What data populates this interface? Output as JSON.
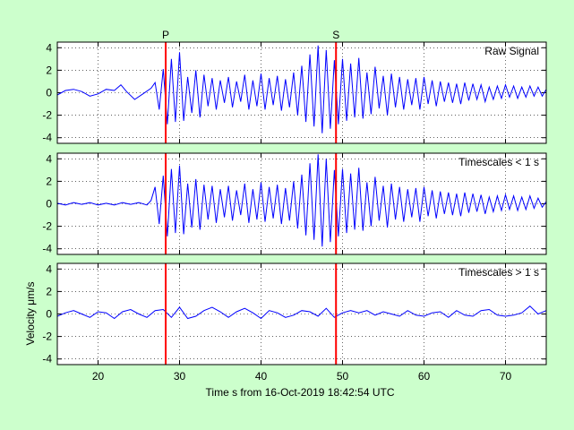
{
  "figure": {
    "background": "#ccffcc",
    "trace_color": "#0000ff",
    "marker_color": "#ff0000",
    "xlabel": "Time s from 16-Oct-2019 18:42:54 UTC",
    "ylabel": "Velocity μm/s"
  },
  "chart_data": [
    {
      "type": "line",
      "title": "Raw Signal",
      "xlim": [
        15,
        75
      ],
      "ylim": [
        -4.5,
        4.5
      ],
      "xticks": [
        20,
        30,
        40,
        50,
        60,
        70
      ],
      "yticks": [
        -4,
        -2,
        0,
        2,
        4
      ],
      "grid": true,
      "show_xtick_labels": false,
      "markers": [
        {
          "label": "P",
          "x": 28.3
        },
        {
          "label": "S",
          "x": 49.2
        }
      ],
      "series": [
        {
          "color": "#0000ff",
          "x": [
            15,
            16,
            17,
            18,
            19,
            20,
            21,
            22,
            22.8,
            23.5,
            24.5,
            25.5,
            26.5,
            27,
            27.5,
            28,
            28.5,
            29,
            29.5,
            30,
            30.5,
            31,
            31.5,
            32,
            32.5,
            33,
            33.5,
            34,
            34.5,
            35,
            35.5,
            36,
            36.5,
            37,
            37.5,
            38,
            38.5,
            39,
            39.5,
            40,
            40.5,
            41,
            41.5,
            42,
            42.5,
            43,
            43.5,
            44,
            44.5,
            45,
            45.5,
            46,
            46.5,
            47,
            47.5,
            48,
            48.5,
            49,
            49.5,
            50,
            50.5,
            51,
            51.5,
            52,
            52.5,
            53,
            53.5,
            54,
            54.5,
            55,
            55.5,
            56,
            56.5,
            57,
            57.5,
            58,
            58.5,
            59,
            59.5,
            60,
            60.5,
            61,
            61.5,
            62,
            62.5,
            63,
            63.5,
            64,
            64.5,
            65,
            65.5,
            66,
            66.5,
            67,
            67.5,
            68,
            68.5,
            69,
            69.5,
            70,
            70.5,
            71,
            71.5,
            72,
            72.5,
            73,
            73.5,
            74,
            74.5,
            75
          ],
          "y": [
            -0.2,
            0.2,
            0.3,
            0.1,
            -0.3,
            -0.1,
            0.3,
            0.2,
            0.7,
            0.1,
            -0.6,
            -0.1,
            0.4,
            0.9,
            -1.5,
            2.1,
            -2.8,
            3.0,
            -2.6,
            3.6,
            -2.5,
            1.4,
            -1.8,
            2.0,
            -2.2,
            1.6,
            -1.2,
            1.3,
            -1.5,
            1.1,
            -0.9,
            1.4,
            -1.3,
            1.0,
            -0.8,
            1.6,
            -1.5,
            1.1,
            -1.2,
            1.7,
            -1.5,
            1.3,
            -1.1,
            1.5,
            -1.6,
            1.2,
            -1.3,
            1.8,
            -2.0,
            2.4,
            -2.6,
            3.4,
            -3.0,
            4.2,
            -3.6,
            3.8,
            -3.2,
            2.9,
            -2.8,
            3.0,
            -2.5,
            2.6,
            -2.2,
            3.1,
            -2.3,
            1.8,
            -1.9,
            2.3,
            -1.4,
            1.5,
            -2.0,
            1.7,
            -1.3,
            1.4,
            -1.5,
            1.2,
            -1.1,
            1.3,
            -1.5,
            1.4,
            -1.0,
            1.1,
            -1.2,
            1.0,
            -0.8,
            0.9,
            -0.9,
            0.8,
            -1.0,
            0.9,
            -0.7,
            0.8,
            -0.6,
            0.7,
            -0.8,
            0.5,
            -0.6,
            0.6,
            -0.5,
            0.7,
            -0.4,
            0.6,
            -0.5,
            0.5,
            -0.4,
            0.6,
            -0.3,
            0.5,
            -0.3,
            0.3
          ]
        }
      ]
    },
    {
      "type": "line",
      "title": "Timescales < 1 s",
      "xlim": [
        15,
        75
      ],
      "ylim": [
        -4.5,
        4.5
      ],
      "xticks": [
        20,
        30,
        40,
        50,
        60,
        70
      ],
      "yticks": [
        -4,
        -2,
        0,
        2,
        4
      ],
      "grid": true,
      "show_xtick_labels": false,
      "markers": [
        {
          "label": "P",
          "x": 28.3
        },
        {
          "label": "S",
          "x": 49.2
        }
      ],
      "series": [
        {
          "color": "#0000ff",
          "x": [
            15,
            16,
            17,
            18,
            19,
            20,
            21,
            22,
            23,
            24,
            25,
            26,
            26.5,
            27,
            27.5,
            28,
            28.5,
            29,
            29.5,
            30,
            30.5,
            31,
            31.5,
            32,
            32.5,
            33,
            33.5,
            34,
            34.5,
            35,
            35.5,
            36,
            36.5,
            37,
            37.5,
            38,
            38.5,
            39,
            39.5,
            40,
            40.5,
            41,
            41.5,
            42,
            42.5,
            43,
            43.5,
            44,
            44.5,
            45,
            45.5,
            46,
            46.5,
            47,
            47.5,
            48,
            48.5,
            49,
            49.5,
            50,
            50.5,
            51,
            51.5,
            52,
            52.5,
            53,
            53.5,
            54,
            54.5,
            55,
            55.5,
            56,
            56.5,
            57,
            57.5,
            58,
            58.5,
            59,
            59.5,
            60,
            60.5,
            61,
            61.5,
            62,
            62.5,
            63,
            63.5,
            64,
            64.5,
            65,
            65.5,
            66,
            66.5,
            67,
            67.5,
            68,
            68.5,
            69,
            69.5,
            70,
            70.5,
            71,
            71.5,
            72,
            72.5,
            73,
            73.5,
            74,
            74.5,
            75
          ],
          "y": [
            0.05,
            -0.1,
            0.1,
            -0.05,
            0.1,
            -0.1,
            0.05,
            -0.1,
            0.1,
            -0.05,
            0.1,
            -0.1,
            0.3,
            1.5,
            -1.8,
            2.5,
            -2.9,
            3.1,
            -2.6,
            3.4,
            -2.7,
            1.8,
            -2.1,
            2.2,
            -2.3,
            1.7,
            -1.4,
            1.6,
            -1.7,
            1.3,
            -1.2,
            1.6,
            -1.5,
            1.2,
            -1.0,
            1.8,
            -1.7,
            1.3,
            -1.4,
            1.9,
            -1.6,
            1.5,
            -1.3,
            1.7,
            -1.8,
            1.4,
            -1.5,
            2.0,
            -2.2,
            2.6,
            -2.8,
            3.6,
            -3.2,
            4.4,
            -3.8,
            4.0,
            -3.4,
            3.0,
            -2.9,
            3.1,
            -2.6,
            2.7,
            -2.3,
            3.2,
            -2.4,
            1.9,
            -2.0,
            2.4,
            -1.5,
            1.6,
            -2.1,
            1.8,
            -1.4,
            1.5,
            -1.6,
            1.3,
            -1.2,
            1.4,
            -1.6,
            1.5,
            -1.1,
            1.2,
            -1.3,
            1.1,
            -0.9,
            1.0,
            -1.0,
            0.9,
            -1.1,
            1.0,
            -0.8,
            0.9,
            -0.7,
            0.8,
            -0.9,
            0.6,
            -0.7,
            0.7,
            -0.6,
            0.8,
            -0.5,
            0.7,
            -0.6,
            0.6,
            -0.5,
            0.7,
            -0.4,
            0.5,
            -0.3,
            0.2
          ]
        }
      ]
    },
    {
      "type": "line",
      "title": "Timescales > 1 s",
      "xlim": [
        15,
        75
      ],
      "ylim": [
        -4.5,
        4.5
      ],
      "xticks": [
        20,
        30,
        40,
        50,
        60,
        70
      ],
      "yticks": [
        -4,
        -2,
        0,
        2,
        4
      ],
      "grid": true,
      "show_xtick_labels": true,
      "markers": [
        {
          "label": "P",
          "x": 28.3
        },
        {
          "label": "S",
          "x": 49.2
        }
      ],
      "series": [
        {
          "color": "#0000ff",
          "x": [
            15,
            16,
            17,
            18,
            19,
            20,
            21,
            22,
            23,
            24,
            25,
            26,
            27,
            28,
            29,
            30,
            31,
            32,
            33,
            34,
            35,
            36,
            37,
            38,
            39,
            40,
            41,
            42,
            43,
            44,
            45,
            46,
            47,
            48,
            49,
            50,
            51,
            52,
            53,
            54,
            55,
            56,
            57,
            58,
            59,
            60,
            61,
            62,
            63,
            64,
            65,
            66,
            67,
            68,
            69,
            70,
            71,
            72,
            73,
            74,
            75
          ],
          "y": [
            -0.2,
            0.1,
            0.3,
            0.0,
            -0.3,
            0.2,
            0.1,
            -0.4,
            0.2,
            0.4,
            0.0,
            -0.3,
            0.3,
            0.4,
            -0.3,
            0.6,
            -0.4,
            -0.2,
            0.3,
            0.6,
            0.2,
            -0.3,
            0.2,
            0.5,
            0.1,
            -0.4,
            0.3,
            0.1,
            -0.3,
            -0.1,
            0.3,
            0.2,
            -0.2,
            0.5,
            -0.3,
            0.1,
            0.3,
            0.1,
            0.3,
            -0.1,
            0.2,
            0.0,
            -0.2,
            0.3,
            -0.1,
            -0.2,
            0.1,
            0.2,
            -0.3,
            0.3,
            -0.1,
            -0.2,
            0.3,
            0.4,
            -0.1,
            -0.2,
            -0.1,
            0.1,
            0.7,
            0.0,
            0.3
          ]
        }
      ]
    }
  ]
}
